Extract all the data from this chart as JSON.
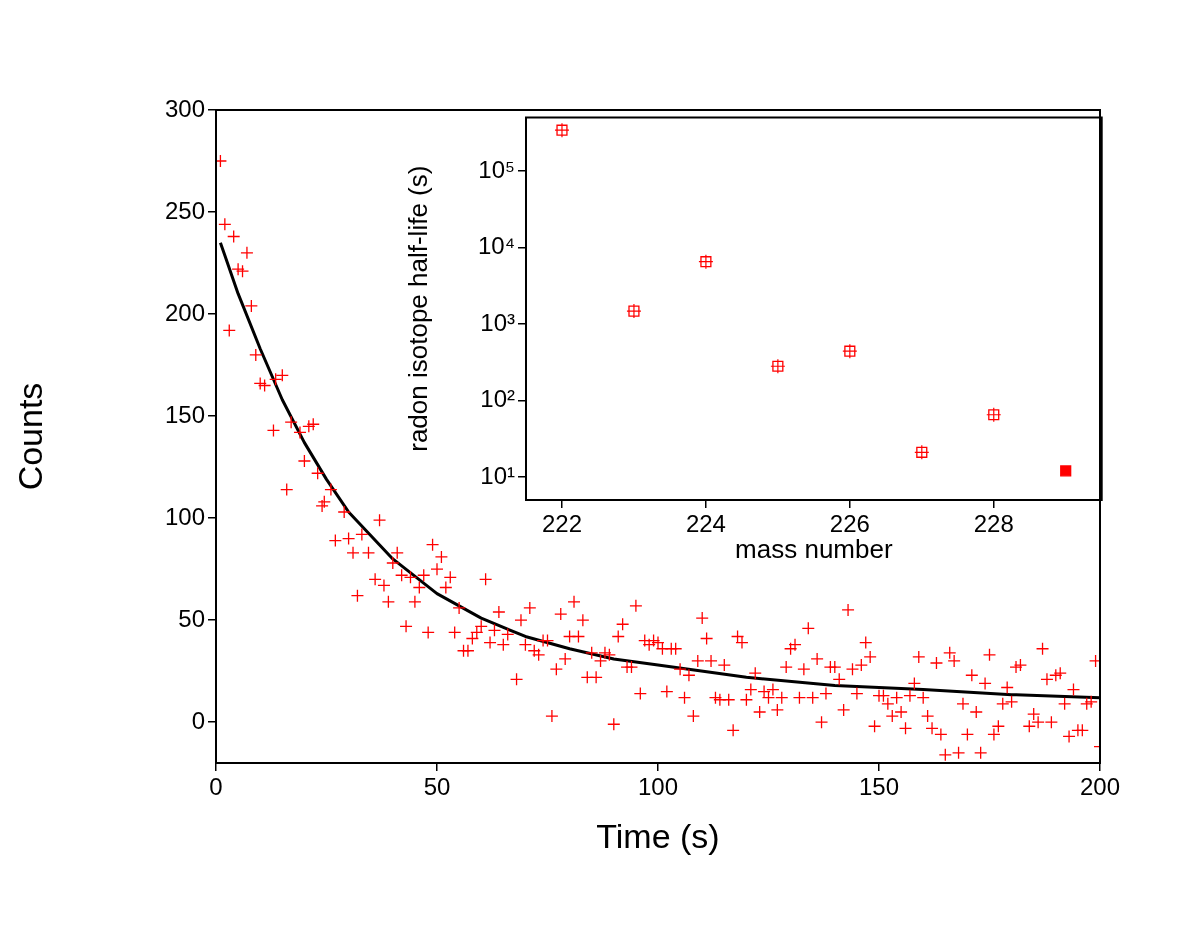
{
  "chart_data": [
    {
      "type": "scatter",
      "xlabel": "Time (s)",
      "ylabel": "Counts",
      "xlim": [
        0,
        200
      ],
      "ylim": [
        -20,
        300
      ],
      "xticks": [
        0,
        50,
        100,
        150,
        200
      ],
      "yticks": [
        0,
        50,
        100,
        150,
        200,
        250,
        300
      ],
      "grid": false,
      "legend": false,
      "series": [
        {
          "color": "#ff0000",
          "marker": "cross",
          "x": [
            1,
            2,
            3,
            4,
            5,
            6,
            7,
            8,
            9,
            10,
            11,
            13,
            13.5,
            15,
            16,
            17,
            19,
            20,
            21,
            22,
            23,
            24,
            24.5,
            26,
            27,
            29,
            30,
            31,
            32,
            33,
            34.5,
            36,
            37,
            38,
            39,
            40,
            41,
            42,
            43,
            44,
            45,
            46,
            47,
            48,
            49,
            50,
            51,
            52,
            53,
            54,
            55,
            56,
            57,
            58,
            59,
            60,
            61,
            62,
            63,
            64,
            65,
            66,
            68,
            69,
            70,
            71,
            72,
            73,
            74,
            75,
            76,
            77,
            78,
            79,
            80,
            81,
            82,
            83,
            84,
            85,
            86,
            87,
            88,
            89,
            90,
            91,
            92,
            93,
            94,
            95,
            96,
            97,
            98,
            99,
            100,
            101,
            102,
            103,
            104,
            105,
            106,
            107,
            108,
            109,
            110,
            111,
            112,
            113,
            114,
            115,
            116,
            117,
            118,
            119,
            120,
            121,
            122,
            123,
            124,
            125,
            126,
            127,
            128,
            129,
            130,
            131,
            132,
            133,
            134,
            135,
            136,
            137,
            138,
            139,
            140,
            141,
            142,
            143,
            144,
            145,
            146,
            147,
            148,
            149,
            150,
            151,
            152,
            153,
            154,
            155,
            156,
            157,
            158,
            159,
            160,
            161,
            162,
            163,
            164,
            165,
            166,
            167,
            168,
            169,
            170,
            171,
            172,
            173,
            174,
            175,
            176,
            177,
            178,
            179,
            180,
            181,
            182,
            184,
            185,
            186,
            187,
            188,
            189,
            190,
            191,
            192,
            193,
            194,
            195,
            196,
            197,
            198,
            199,
            200
          ],
          "values": [
            275,
            244,
            192,
            238,
            222,
            221,
            230,
            204,
            180,
            166,
            165,
            143,
            168,
            170,
            114,
            147,
            142,
            128,
            145,
            146,
            122,
            106,
            108,
            114,
            89,
            103,
            90,
            83,
            62,
            92,
            83,
            70,
            99,
            67,
            59,
            78,
            83,
            72,
            47,
            71,
            59,
            66,
            72,
            44,
            87,
            75,
            81,
            66,
            71,
            44,
            56,
            35,
            35,
            41,
            44,
            47,
            70,
            39,
            45,
            54,
            38,
            43,
            21,
            50,
            38,
            56,
            35,
            33,
            40,
            40,
            3,
            26,
            53,
            31,
            42,
            59,
            42,
            50,
            22,
            34,
            22,
            30,
            34,
            33,
            -1,
            42,
            48,
            27,
            27,
            57,
            14,
            40,
            38,
            40,
            39,
            36,
            15,
            36,
            36,
            26,
            12,
            23,
            3,
            30,
            51,
            41,
            30,
            12,
            11,
            28,
            11,
            -4,
            42,
            39,
            11,
            16,
            24,
            5,
            15,
            12,
            16,
            6,
            12,
            27,
            36,
            38,
            12,
            26,
            46,
            12,
            31,
            0,
            14,
            27,
            27,
            21,
            6,
            55,
            26,
            14,
            28,
            39,
            32,
            -2,
            13,
            13,
            9,
            3,
            12,
            5,
            -3,
            13,
            19,
            32,
            12,
            3,
            -3,
            29,
            -6,
            -16,
            34,
            30,
            -15,
            9,
            -6,
            23,
            5,
            -15,
            19,
            33,
            -6,
            -2,
            9,
            17,
            10,
            27,
            28,
            -2,
            4,
            0,
            36,
            21,
            0,
            23,
            24,
            9,
            -7,
            16,
            -4,
            -4,
            9,
            10,
            30,
            -12
          ]
        },
        {
          "type": "line",
          "color": "#000000",
          "marker": "none",
          "x": [
            1,
            5,
            10,
            15,
            20,
            25,
            30,
            40,
            50,
            60,
            70,
            80,
            90,
            100,
            120,
            140,
            160,
            180,
            200
          ],
          "values": [
            235,
            210,
            183,
            158,
            137,
            119,
            103,
            80,
            63,
            51,
            42,
            36,
            31,
            28,
            22,
            18,
            16,
            13.5,
            12
          ]
        }
      ]
    },
    {
      "type": "scatter",
      "xlabel": "mass number",
      "ylabel": "radon isotope half-life (s)",
      "log": "y",
      "xlim": [
        221.5,
        229.5
      ],
      "ylim": [
        5,
        500000
      ],
      "xticks": [
        222,
        224,
        226,
        228
      ],
      "yticks": [
        {
          "value": 10,
          "label": "10¹"
        },
        {
          "value": 100,
          "label": "10²"
        },
        {
          "value": 1000,
          "label": "10³"
        },
        {
          "value": 10000,
          "label": "10⁴"
        },
        {
          "value": 100000,
          "label": "10⁵"
        }
      ],
      "grid": false,
      "legend": false,
      "series": [
        {
          "color": "#ff0000",
          "marker": "square",
          "x": [
            222,
            223,
            224,
            225,
            226,
            227,
            228
          ],
          "values": [
            340000,
            1470,
            6500,
            280,
            440,
            21,
            65
          ]
        },
        {
          "color": "#ff0000",
          "marker": "square",
          "x": [
            229
          ],
          "values": [
            12
          ]
        }
      ]
    }
  ]
}
